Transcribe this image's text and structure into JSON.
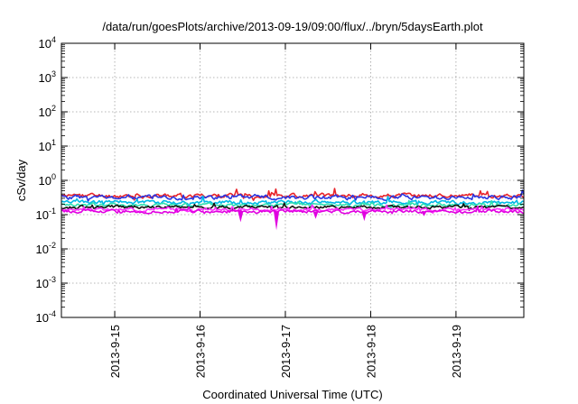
{
  "chart_data": {
    "type": "line",
    "title": "/data/run/goesPlots/archive/2013-09-19/09:00/flux/../bryn/5daysEarth.plot",
    "xlabel": "Coordinated Universal Time (UTC)",
    "ylabel": "cSv/day",
    "y_scale": "log",
    "ylim": [
      0.0001,
      10000
    ],
    "y_ticks": [
      {
        "value": 10000,
        "base": "10",
        "exp": "4"
      },
      {
        "value": 1000,
        "base": "10",
        "exp": "3"
      },
      {
        "value": 100,
        "base": "10",
        "exp": "2"
      },
      {
        "value": 10,
        "base": "10",
        "exp": "1"
      },
      {
        "value": 1,
        "base": "10",
        "exp": "0"
      },
      {
        "value": 0.1,
        "base": "10",
        "exp": "-1"
      },
      {
        "value": 0.01,
        "base": "10",
        "exp": "-2"
      },
      {
        "value": 0.001,
        "base": "10",
        "exp": "-3"
      },
      {
        "value": 0.0001,
        "base": "10",
        "exp": "-4"
      }
    ],
    "xlim": [
      "2013-09-14 09:00",
      "2013-09-19 09:00"
    ],
    "x_ticks": [
      "2013-9-15",
      "2013-9-16",
      "2013-9-17",
      "2013-9-18",
      "2013-9-19"
    ],
    "x_tick_positions_days": [
      0.625,
      1.625,
      2.625,
      3.625,
      4.625
    ],
    "grid": true,
    "series": [
      {
        "color": "#e8242a",
        "base": 0.36,
        "noise": 0.1,
        "seed": 11
      },
      {
        "color": "#2a35e0",
        "base": 0.32,
        "noise": 0.1,
        "seed": 23
      },
      {
        "color": "#00b8e6",
        "base": 0.23,
        "noise": 0.09,
        "seed": 37
      },
      {
        "color": "#30e0b0",
        "base": 0.19,
        "noise": 0.08,
        "seed": 41
      },
      {
        "color": "#111111",
        "base": 0.165,
        "noise": 0.07,
        "seed": 53
      },
      {
        "color": "#ff30ff",
        "base": 0.14,
        "noise": 0.07,
        "seed": 67
      },
      {
        "color": "#e000e0",
        "base": 0.125,
        "noise": 0.08,
        "seed": 79
      }
    ],
    "dips": [
      {
        "x_days": 2.1,
        "y": 0.06
      },
      {
        "x_days": 2.52,
        "y": 0.035
      },
      {
        "x_days": 2.98,
        "y": 0.075
      },
      {
        "x_days": 3.55,
        "y": 0.065
      },
      {
        "x_days": 4.25,
        "y": 0.09
      }
    ]
  }
}
